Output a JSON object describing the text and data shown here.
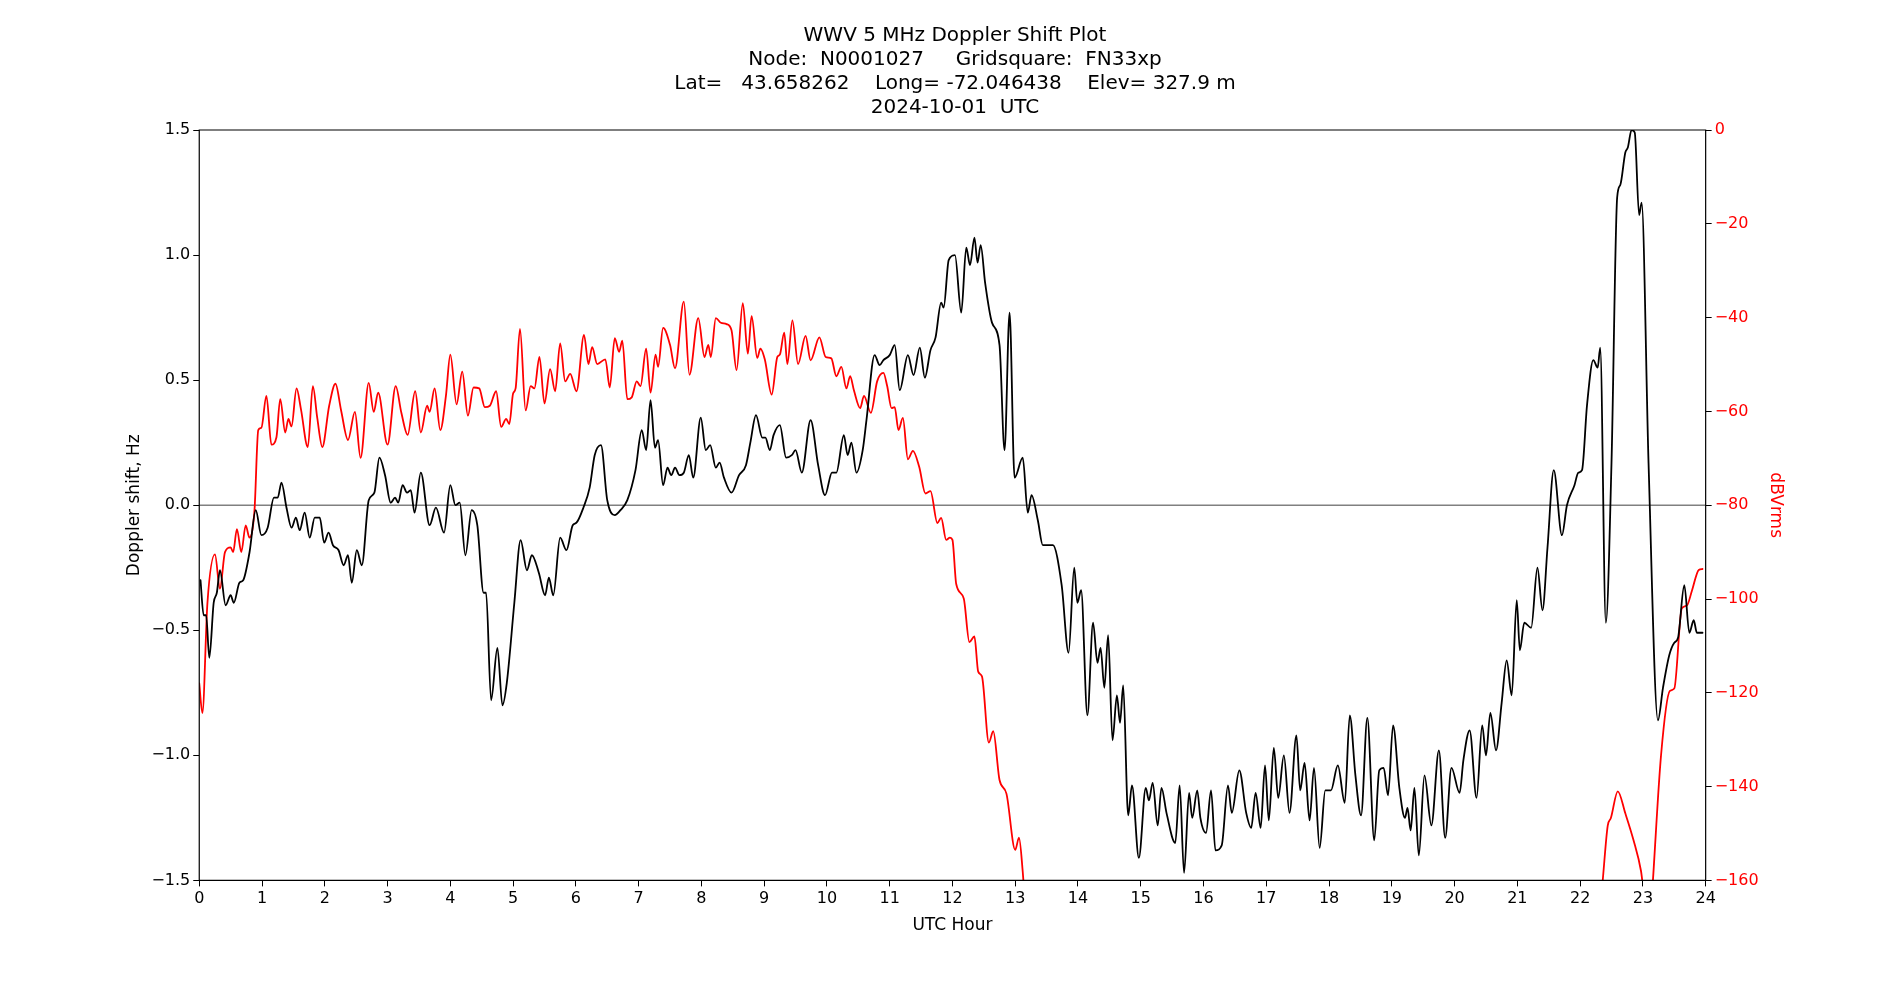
{
  "chart_data": {
    "type": "line",
    "title": "WWV 5 MHz Doppler Shift Plot",
    "subtitle": "Node:  N0001027     Gridsquare:  FN33xp\nLat=   43.658262    Long= -72.046438    Elev= 327.9 m\n2024-10-01  UTC",
    "xlabel": "UTC Hour",
    "ylabel": "Doppler shift, Hz",
    "y2label": "dBVrms",
    "xlim": [
      0,
      24
    ],
    "xticks": [
      0,
      1,
      2,
      3,
      4,
      5,
      6,
      7,
      8,
      9,
      10,
      11,
      12,
      13,
      14,
      15,
      16,
      17,
      18,
      19,
      20,
      21,
      22,
      23,
      24
    ],
    "ylim": [
      -1.5,
      1.5
    ],
    "yticks": [
      {
        "value": -1.5,
        "label": "−1.5"
      },
      {
        "value": -1,
        "label": "−1.0"
      },
      {
        "value": -0.5,
        "label": "−0.5"
      },
      {
        "value": 0,
        "label": "0.0"
      },
      {
        "value": 0.5,
        "label": "0.5"
      },
      {
        "value": 1,
        "label": "1.0"
      },
      {
        "value": 1.5,
        "label": "1.5"
      }
    ],
    "y2lim": [
      -160,
      0
    ],
    "y2ticks": [
      {
        "value": -160,
        "label": "−160"
      },
      {
        "value": -140,
        "label": "−140"
      },
      {
        "value": -120,
        "label": "−120"
      },
      {
        "value": -100,
        "label": "−100"
      },
      {
        "value": -80,
        "label": "−80"
      },
      {
        "value": -60,
        "label": "−60"
      },
      {
        "value": -40,
        "label": "−40"
      },
      {
        "value": -20,
        "label": "−20"
      },
      0
    ],
    "ref_lines": [
      {
        "axis": "y",
        "value": 0,
        "color": "#808080"
      }
    ],
    "line_style": "solid",
    "marker": "none",
    "series": [
      {
        "color": "#000000",
        "x": [
          0.02,
          0.07,
          0.11,
          0.16,
          0.23,
          0.28,
          0.33,
          0.42,
          0.5,
          0.55,
          0.64,
          0.7,
          0.8,
          0.9,
          0.99,
          1.09,
          1.19,
          1.25,
          1.31,
          1.39,
          1.47,
          1.54,
          1.6,
          1.68,
          1.76,
          1.84,
          1.92,
          1.99,
          2.06,
          2.13,
          2.22,
          2.3,
          2.37,
          2.43,
          2.51,
          2.59,
          2.7,
          2.79,
          2.87,
          2.96,
          3.05,
          3.12,
          3.17,
          3.24,
          3.31,
          3.37,
          3.43,
          3.53,
          3.67,
          3.77,
          3.9,
          4.0,
          4.08,
          4.15,
          4.24,
          4.34,
          4.43,
          4.53,
          4.57,
          4.65,
          4.75,
          4.83,
          4.9,
          5.02,
          5.12,
          5.22,
          5.3,
          5.41,
          5.51,
          5.57,
          5.64,
          5.75,
          5.85,
          5.95,
          6.01,
          6.12,
          6.22,
          6.3,
          6.4,
          6.5,
          6.62,
          6.71,
          6.82,
          6.95,
          7.05,
          7.12,
          7.19,
          7.26,
          7.31,
          7.39,
          7.46,
          7.52,
          7.58,
          7.65,
          7.72,
          7.8,
          7.87,
          7.99,
          8.07,
          8.14,
          8.23,
          8.29,
          8.36,
          8.48,
          8.6,
          8.71,
          8.78,
          8.87,
          8.97,
          9.02,
          9.09,
          9.15,
          9.25,
          9.35,
          9.44,
          9.5,
          9.6,
          9.74,
          9.86,
          9.97,
          10.08,
          10.15,
          10.27,
          10.33,
          10.39,
          10.47,
          10.57,
          10.63,
          10.76,
          10.84,
          10.9,
          11.0,
          11.08,
          11.16,
          11.29,
          11.38,
          11.48,
          11.56,
          11.65,
          11.73,
          11.82,
          11.86,
          11.94,
          12.04,
          12.14,
          12.22,
          12.28,
          12.35,
          12.4,
          12.45,
          12.52,
          12.63,
          12.75,
          12.83,
          12.91,
          12.99,
          13.12,
          13.2,
          13.26,
          13.36,
          13.44,
          13.6,
          13.74,
          13.85,
          13.94,
          13.99,
          14.05,
          14.15,
          14.24,
          14.31,
          14.36,
          14.42,
          14.48,
          14.55,
          14.62,
          14.67,
          14.72,
          14.8,
          14.86,
          14.97,
          15.08,
          15.13,
          15.19,
          15.27,
          15.33,
          15.41,
          15.55,
          15.62,
          15.69,
          15.77,
          15.82,
          15.9,
          15.95,
          16.04,
          16.12,
          16.19,
          16.29,
          16.39,
          16.45,
          16.57,
          16.68,
          16.76,
          16.83,
          16.91,
          16.98,
          17.04,
          17.12,
          17.19,
          17.28,
          17.37,
          17.48,
          17.54,
          17.61,
          17.69,
          17.76,
          17.85,
          17.94,
          18.03,
          18.14,
          18.25,
          18.33,
          18.42,
          18.51,
          18.61,
          18.72,
          18.8,
          18.87,
          18.94,
          19.02,
          19.12,
          19.21,
          19.25,
          19.3,
          19.36,
          19.43,
          19.52,
          19.63,
          19.75,
          19.85,
          19.95,
          20.08,
          20.14,
          20.24,
          20.35,
          20.44,
          20.5,
          20.57,
          20.66,
          20.75,
          20.83,
          20.91,
          20.99,
          21.04,
          21.11,
          21.22,
          21.32,
          21.4,
          21.48,
          21.58,
          21.71,
          21.79,
          21.91,
          21.97,
          22.03,
          22.11,
          22.21,
          22.28,
          22.32,
          22.41,
          22.5,
          22.59,
          22.64,
          22.72,
          22.76,
          22.82,
          22.87,
          22.94,
          22.98,
          23.09,
          23.24,
          23.32,
          23.42,
          23.5,
          23.56,
          23.66,
          23.74,
          23.81,
          23.86,
          23.95
        ],
        "values": [
          -0.3,
          -0.44,
          -0.44,
          -0.61,
          -0.39,
          -0.35,
          -0.26,
          -0.4,
          -0.36,
          -0.39,
          -0.31,
          -0.3,
          -0.19,
          -0.02,
          -0.12,
          -0.09,
          0.03,
          0.03,
          0.09,
          -0.01,
          -0.09,
          -0.05,
          -0.1,
          -0.03,
          -0.13,
          -0.05,
          -0.05,
          -0.15,
          -0.11,
          -0.16,
          -0.18,
          -0.24,
          -0.2,
          -0.31,
          -0.18,
          -0.24,
          0.02,
          0.05,
          0.19,
          0.12,
          0.01,
          0.03,
          0.01,
          0.08,
          0.05,
          0.06,
          -0.03,
          0.13,
          -0.08,
          -0.01,
          -0.11,
          0.08,
          0.0,
          0.01,
          -0.2,
          -0.02,
          -0.08,
          -0.35,
          -0.35,
          -0.78,
          -0.57,
          -0.8,
          -0.71,
          -0.39,
          -0.14,
          -0.26,
          -0.2,
          -0.27,
          -0.36,
          -0.29,
          -0.36,
          -0.13,
          -0.18,
          -0.08,
          -0.07,
          -0.01,
          0.07,
          0.2,
          0.24,
          0.02,
          -0.04,
          -0.02,
          0.02,
          0.14,
          0.3,
          0.22,
          0.42,
          0.23,
          0.26,
          0.08,
          0.15,
          0.12,
          0.15,
          0.12,
          0.13,
          0.2,
          0.11,
          0.35,
          0.22,
          0.24,
          0.15,
          0.17,
          0.11,
          0.05,
          0.12,
          0.16,
          0.25,
          0.36,
          0.27,
          0.27,
          0.22,
          0.28,
          0.32,
          0.19,
          0.2,
          0.22,
          0.13,
          0.34,
          0.16,
          0.04,
          0.13,
          0.13,
          0.28,
          0.2,
          0.25,
          0.13,
          0.22,
          0.34,
          0.6,
          0.56,
          0.58,
          0.6,
          0.64,
          0.46,
          0.6,
          0.52,
          0.63,
          0.51,
          0.62,
          0.67,
          0.81,
          0.79,
          0.98,
          1.0,
          0.77,
          1.03,
          0.96,
          1.07,
          0.97,
          1.04,
          0.89,
          0.73,
          0.64,
          0.22,
          0.77,
          0.11,
          0.19,
          -0.03,
          0.04,
          -0.06,
          -0.16,
          -0.16,
          -0.32,
          -0.59,
          -0.25,
          -0.39,
          -0.34,
          -0.84,
          -0.47,
          -0.63,
          -0.57,
          -0.73,
          -0.52,
          -0.94,
          -0.76,
          -0.87,
          -0.72,
          -1.24,
          -1.12,
          -1.41,
          -1.13,
          -1.18,
          -1.11,
          -1.28,
          -1.13,
          -1.23,
          -1.35,
          -1.12,
          -1.47,
          -1.15,
          -1.25,
          -1.14,
          -1.25,
          -1.31,
          -1.14,
          -1.38,
          -1.36,
          -1.12,
          -1.23,
          -1.06,
          -1.23,
          -1.29,
          -1.15,
          -1.29,
          -1.04,
          -1.26,
          -0.97,
          -1.17,
          -1.0,
          -1.23,
          -0.92,
          -1.14,
          -1.03,
          -1.26,
          -1.05,
          -1.37,
          -1.14,
          -1.14,
          -1.04,
          -1.19,
          -0.84,
          -1.08,
          -1.24,
          -0.85,
          -1.34,
          -1.06,
          -1.05,
          -1.16,
          -0.88,
          -1.13,
          -1.25,
          -1.21,
          -1.3,
          -1.13,
          -1.4,
          -1.08,
          -1.28,
          -0.98,
          -1.33,
          -1.05,
          -1.15,
          -1.02,
          -0.9,
          -1.17,
          -0.88,
          -1.0,
          -0.83,
          -0.98,
          -0.79,
          -0.62,
          -0.76,
          -0.38,
          -0.58,
          -0.47,
          -0.49,
          -0.25,
          -0.42,
          -0.17,
          0.14,
          -0.12,
          0.0,
          0.08,
          0.13,
          0.14,
          0.4,
          0.58,
          0.55,
          0.63,
          -0.47,
          0.17,
          1.23,
          1.28,
          1.41,
          1.43,
          1.5,
          1.49,
          1.16,
          1.21,
          0.17,
          -0.86,
          -0.73,
          -0.6,
          -0.55,
          -0.53,
          -0.32,
          -0.51,
          -0.46,
          -0.51,
          -0.51
        ]
      },
      {
        "color": "#ff0000",
        "axis": "y2",
        "x": [
          0.0,
          0.05,
          0.13,
          0.25,
          0.33,
          0.41,
          0.5,
          0.54,
          0.6,
          0.67,
          0.74,
          0.8,
          0.88,
          0.94,
          0.99,
          1.07,
          1.15,
          1.23,
          1.29,
          1.37,
          1.42,
          1.47,
          1.55,
          1.62,
          1.73,
          1.81,
          1.88,
          1.96,
          2.07,
          2.17,
          2.26,
          2.37,
          2.48,
          2.57,
          2.7,
          2.78,
          2.85,
          3.0,
          3.13,
          3.22,
          3.32,
          3.44,
          3.53,
          3.63,
          3.67,
          3.75,
          3.84,
          3.93,
          4.0,
          4.1,
          4.19,
          4.28,
          4.37,
          4.46,
          4.55,
          4.63,
          4.73,
          4.81,
          4.89,
          4.94,
          5.0,
          5.04,
          5.11,
          5.2,
          5.28,
          5.34,
          5.42,
          5.5,
          5.59,
          5.67,
          5.75,
          5.83,
          5.91,
          6.01,
          6.13,
          6.2,
          6.26,
          6.34,
          6.47,
          6.54,
          6.62,
          6.69,
          6.74,
          6.82,
          6.89,
          6.97,
          7.03,
          7.12,
          7.19,
          7.27,
          7.31,
          7.39,
          7.5,
          7.58,
          7.72,
          7.81,
          7.95,
          8.05,
          8.11,
          8.15,
          8.23,
          8.31,
          8.4,
          8.48,
          8.56,
          8.66,
          8.74,
          8.8,
          8.89,
          8.94,
          9.01,
          9.12,
          9.21,
          9.25,
          9.32,
          9.37,
          9.45,
          9.54,
          9.66,
          9.74,
          9.88,
          9.98,
          10.07,
          10.15,
          10.23,
          10.31,
          10.37,
          10.43,
          10.53,
          10.59,
          10.7,
          10.8,
          10.9,
          10.96,
          11.03,
          11.08,
          11.14,
          11.21,
          11.29,
          11.37,
          11.47,
          11.57,
          11.65,
          11.76,
          11.82,
          11.9,
          11.96,
          12.0,
          12.06,
          12.18,
          12.27,
          12.35,
          12.41,
          12.47,
          12.58,
          12.65,
          12.75,
          12.86,
          13.0,
          13.06,
          13.12,
          13.13,
          13.2,
          22.3,
          22.36,
          22.44,
          22.49,
          22.6,
          22.72,
          22.85,
          22.97,
          22.99,
          23.08,
          23.16,
          23.29,
          23.43,
          23.5,
          23.62,
          23.7,
          23.78,
          23.89,
          23.95
        ],
        "values": [
          -118,
          -124.3,
          -100.9,
          -90.5,
          -97.8,
          -90,
          -89,
          -90,
          -85.1,
          -90,
          -84.3,
          -86.9,
          -81.1,
          -64,
          -63.5,
          -56.7,
          -67.1,
          -65.5,
          -57.4,
          -64.5,
          -61.6,
          -63.2,
          -55.1,
          -59.5,
          -67.6,
          -54.6,
          -61.4,
          -67.6,
          -58.8,
          -54.1,
          -59.8,
          -66.1,
          -60.1,
          -69.9,
          -53.9,
          -60.1,
          -56,
          -67.1,
          -54.6,
          -60.3,
          -65,
          -55.7,
          -64.5,
          -58.8,
          -60.1,
          -55.1,
          -64,
          -56.7,
          -47.9,
          -58.5,
          -51.5,
          -60.9,
          -54.9,
          -55.1,
          -59.1,
          -58.8,
          -55.7,
          -63.3,
          -61.6,
          -62.7,
          -56.2,
          -55.1,
          -42.4,
          -59.8,
          -54.6,
          -55.1,
          -48.4,
          -58.3,
          -51,
          -55.7,
          -45.5,
          -53.6,
          -52,
          -55.7,
          -43.7,
          -49.9,
          -46.3,
          -49.9,
          -48.9,
          -54.9,
          -44.4,
          -47.3,
          -44.9,
          -57.4,
          -57,
          -53.6,
          -54.6,
          -46.6,
          -56,
          -47.9,
          -50.5,
          -42.2,
          -45.8,
          -50.8,
          -36.6,
          -52.2,
          -40.1,
          -48.4,
          -45.8,
          -48.4,
          -40.1,
          -41.1,
          -41.4,
          -42.7,
          -51.2,
          -36.9,
          -47.7,
          -39.7,
          -48.6,
          -46.6,
          -48.9,
          -56.4,
          -48.4,
          -47.9,
          -43.2,
          -49.9,
          -40.6,
          -49.9,
          -43.9,
          -49.1,
          -44.2,
          -48.4,
          -48.7,
          -52.5,
          -50.5,
          -55.1,
          -52.5,
          -55.5,
          -59.3,
          -56.7,
          -60.3,
          -53.6,
          -51.8,
          -54.6,
          -59.3,
          -59.1,
          -64,
          -61.4,
          -70.2,
          -68.4,
          -71.8,
          -77.5,
          -77,
          -83.8,
          -82.7,
          -87.4,
          -86.9,
          -87.4,
          -96.8,
          -99.9,
          -109.2,
          -108,
          -115.5,
          -116.5,
          -130.6,
          -128.2,
          -138.6,
          -141.5,
          -153.5,
          -150.9,
          -158.2,
          -160,
          null,
          null,
          -160,
          -148.3,
          -146.7,
          -141,
          -145.7,
          -151.4,
          -158,
          -160,
          null,
          -160,
          -133.2,
          -119.6,
          -119.1,
          -102,
          -101.4,
          -98.3,
          -93.8,
          -93.6
        ]
      }
    ]
  }
}
